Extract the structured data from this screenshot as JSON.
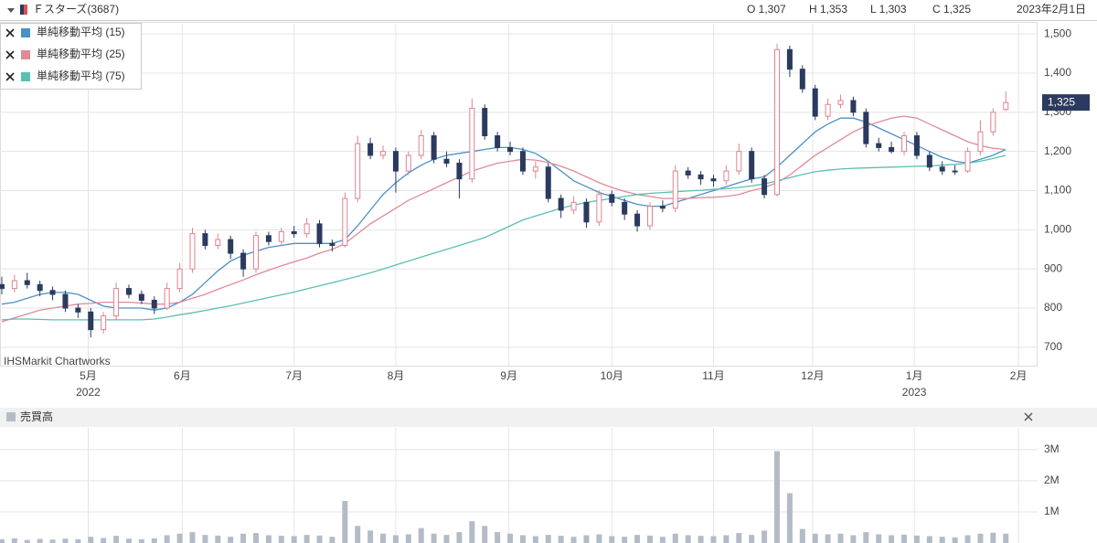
{
  "chart_data": [
    {
      "type": "candlestick",
      "title": "Ｆスターズ(3687)",
      "date": "2023年2月1日",
      "ohlc_labels": [
        "O 1,307",
        "H 1,353",
        "L 1,303",
        "C 1,325"
      ],
      "source": "IHSMarkit Chartworks",
      "last_label": "1,325",
      "up_color": "#e0828f",
      "down_color": "#2b3a5e",
      "grid": true,
      "x": [
        0,
        1,
        2,
        3,
        4,
        5,
        6,
        7,
        8,
        9,
        10,
        11,
        12,
        13,
        14,
        15,
        16,
        17,
        18,
        19,
        20,
        21,
        22,
        23,
        24,
        25,
        26,
        27,
        28,
        29,
        30,
        31,
        32,
        33,
        34,
        35,
        36,
        37,
        38,
        39,
        40,
        41,
        42,
        43,
        44,
        45,
        46,
        47,
        48,
        49,
        50,
        51,
        52,
        53,
        54,
        55,
        56,
        57,
        58,
        59,
        60,
        61,
        62,
        63,
        64,
        65,
        66,
        67,
        68,
        69,
        70,
        71,
        72,
        73,
        74,
        75,
        76,
        77,
        78,
        79
      ],
      "open": [
        860,
        850,
        870,
        860,
        845,
        835,
        800,
        790,
        745,
        780,
        850,
        835,
        820,
        800,
        850,
        900,
        990,
        960,
        975,
        940,
        900,
        985,
        970,
        995,
        990,
        1015,
        965,
        960,
        1080,
        1220,
        1190,
        1200,
        1150,
        1190,
        1240,
        1180,
        1170,
        1130,
        1310,
        1240,
        1210,
        1200,
        1150,
        1160,
        1080,
        1050,
        1070,
        1020,
        1090,
        1070,
        1040,
        1010,
        1060,
        1055,
        1150,
        1140,
        1130,
        1125,
        1150,
        1200,
        1130,
        1090,
        1460,
        1410,
        1360,
        1290,
        1320,
        1330,
        1300,
        1220,
        1210,
        1200,
        1240,
        1190,
        1160,
        1150,
        1150,
        1200,
        1250,
        1307
      ],
      "high": [
        880,
        885,
        890,
        870,
        855,
        845,
        810,
        800,
        790,
        865,
        860,
        845,
        830,
        865,
        915,
        1005,
        1000,
        990,
        985,
        950,
        995,
        995,
        1005,
        1010,
        1030,
        1025,
        975,
        1095,
        1240,
        1235,
        1215,
        1210,
        1200,
        1255,
        1250,
        1200,
        1180,
        1335,
        1320,
        1250,
        1225,
        1210,
        1175,
        1170,
        1090,
        1085,
        1080,
        1100,
        1100,
        1080,
        1050,
        1070,
        1075,
        1165,
        1160,
        1150,
        1140,
        1165,
        1220,
        1210,
        1140,
        1475,
        1470,
        1420,
        1370,
        1335,
        1345,
        1340,
        1310,
        1235,
        1225,
        1250,
        1250,
        1200,
        1175,
        1165,
        1210,
        1280,
        1310,
        1353
      ],
      "low": [
        835,
        840,
        850,
        830,
        820,
        790,
        775,
        725,
        735,
        770,
        825,
        810,
        785,
        795,
        840,
        890,
        950,
        950,
        925,
        880,
        890,
        960,
        960,
        980,
        980,
        955,
        945,
        955,
        1070,
        1180,
        1180,
        1095,
        1140,
        1180,
        1170,
        1160,
        1080,
        1120,
        1230,
        1200,
        1190,
        1140,
        1130,
        1070,
        1030,
        1040,
        1005,
        1010,
        1060,
        1025,
        995,
        1000,
        1045,
        1045,
        1130,
        1115,
        1110,
        1115,
        1140,
        1120,
        1080,
        1085,
        1390,
        1350,
        1280,
        1280,
        1310,
        1290,
        1210,
        1200,
        1195,
        1190,
        1180,
        1150,
        1140,
        1140,
        1145,
        1190,
        1240,
        1303
      ],
      "close": [
        850,
        870,
        860,
        845,
        835,
        800,
        790,
        745,
        780,
        850,
        835,
        820,
        800,
        850,
        900,
        990,
        960,
        975,
        940,
        900,
        985,
        970,
        995,
        990,
        1015,
        965,
        960,
        1080,
        1220,
        1190,
        1200,
        1150,
        1190,
        1240,
        1180,
        1170,
        1130,
        1310,
        1240,
        1210,
        1200,
        1150,
        1160,
        1080,
        1050,
        1070,
        1020,
        1090,
        1070,
        1040,
        1010,
        1060,
        1055,
        1150,
        1140,
        1130,
        1125,
        1150,
        1200,
        1130,
        1090,
        1460,
        1410,
        1360,
        1290,
        1320,
        1330,
        1300,
        1220,
        1210,
        1200,
        1240,
        1190,
        1160,
        1150,
        1150,
        1200,
        1250,
        1300,
        1325
      ],
      "series": [
        {
          "name": "単純移動平均 (15)",
          "color": "#4a90c8",
          "values": [
            810,
            815,
            825,
            835,
            840,
            840,
            835,
            820,
            805,
            800,
            800,
            800,
            795,
            800,
            815,
            835,
            865,
            895,
            920,
            935,
            945,
            955,
            960,
            965,
            965,
            965,
            965,
            975,
            1010,
            1050,
            1090,
            1120,
            1145,
            1165,
            1180,
            1190,
            1195,
            1200,
            1205,
            1210,
            1210,
            1205,
            1195,
            1175,
            1150,
            1125,
            1110,
            1095,
            1085,
            1075,
            1065,
            1060,
            1060,
            1070,
            1080,
            1090,
            1100,
            1110,
            1120,
            1130,
            1135,
            1160,
            1190,
            1220,
            1250,
            1270,
            1285,
            1285,
            1275,
            1260,
            1245,
            1230,
            1215,
            1200,
            1185,
            1175,
            1170,
            1180,
            1190,
            1205
          ]
        },
        {
          "name": "単純移動平均 (25)",
          "color": "#e08a96",
          "values": [
            765,
            775,
            785,
            795,
            800,
            805,
            810,
            812,
            815,
            815,
            815,
            813,
            810,
            810,
            815,
            825,
            835,
            848,
            860,
            872,
            885,
            897,
            908,
            918,
            928,
            940,
            950,
            965,
            990,
            1015,
            1035,
            1055,
            1075,
            1090,
            1105,
            1120,
            1135,
            1150,
            1160,
            1170,
            1175,
            1180,
            1178,
            1172,
            1162,
            1150,
            1135,
            1120,
            1108,
            1098,
            1090,
            1085,
            1080,
            1080,
            1080,
            1082,
            1083,
            1085,
            1090,
            1100,
            1108,
            1120,
            1140,
            1165,
            1190,
            1210,
            1230,
            1250,
            1265,
            1275,
            1285,
            1290,
            1285,
            1270,
            1255,
            1240,
            1225,
            1215,
            1208,
            1205
          ]
        },
        {
          "name": "単純移動平均 (75)",
          "color": "#5bbfb0",
          "values": [
            770,
            772,
            772,
            771,
            770,
            770,
            770,
            770,
            770,
            770,
            770,
            770,
            772,
            777,
            783,
            788,
            794,
            800,
            806,
            813,
            820,
            827,
            834,
            841,
            849,
            857,
            865,
            873,
            881,
            890,
            900,
            910,
            920,
            930,
            940,
            950,
            960,
            970,
            980,
            995,
            1010,
            1025,
            1035,
            1045,
            1055,
            1063,
            1070,
            1075,
            1080,
            1085,
            1090,
            1093,
            1095,
            1097,
            1099,
            1101,
            1103,
            1105,
            1108,
            1112,
            1117,
            1125,
            1133,
            1141,
            1148,
            1152,
            1155,
            1157,
            1158,
            1159,
            1160,
            1161,
            1162,
            1163,
            1165,
            1167,
            1170,
            1175,
            1182,
            1190
          ]
        }
      ],
      "xlim": [
        -0.14,
        81.5
      ],
      "xticks": [
        {
          "value": 6.8,
          "label": "5月"
        },
        {
          "value": 14.2,
          "label": "6月"
        },
        {
          "value": 23,
          "label": "7月"
        },
        {
          "value": 31,
          "label": "8月"
        },
        {
          "value": 39.9,
          "label": "9月"
        },
        {
          "value": 48,
          "label": "10月"
        },
        {
          "value": 56,
          "label": "11月"
        },
        {
          "value": 63.8,
          "label": "12月"
        },
        {
          "value": 71.8,
          "label": "1月"
        },
        {
          "value": 80,
          "label": "2月"
        }
      ],
      "year_labels": [
        {
          "value": 6.8,
          "label": "2022"
        },
        {
          "value": 71.8,
          "label": "2023"
        }
      ],
      "ylim": [
        653,
        1526
      ],
      "yticks": [
        {
          "value": 700,
          "label": "700"
        },
        {
          "value": 800,
          "label": "800"
        },
        {
          "value": 900,
          "label": "900"
        },
        {
          "value": 1000,
          "label": "1,000"
        },
        {
          "value": 1100,
          "label": "1,100"
        },
        {
          "value": 1200,
          "label": "1,200"
        },
        {
          "value": 1300,
          "label": "1,300"
        },
        {
          "value": 1400,
          "label": "1,400"
        },
        {
          "value": 1500,
          "label": "1,500"
        }
      ]
    },
    {
      "type": "bar",
      "title": "売買高",
      "color": "#b3bcc6",
      "grid": true,
      "values": [
        120000,
        150000,
        100000,
        130000,
        110000,
        140000,
        120000,
        200000,
        160000,
        230000,
        140000,
        120000,
        150000,
        250000,
        300000,
        350000,
        260000,
        240000,
        200000,
        300000,
        320000,
        250000,
        230000,
        220000,
        260000,
        240000,
        200000,
        1350000,
        550000,
        400000,
        300000,
        250000,
        280000,
        480000,
        300000,
        260000,
        350000,
        700000,
        550000,
        350000,
        300000,
        250000,
        220000,
        260000,
        230000,
        200000,
        250000,
        280000,
        220000,
        200000,
        260000,
        240000,
        200000,
        300000,
        250000,
        230000,
        220000,
        250000,
        320000,
        260000,
        400000,
        2950000,
        1600000,
        450000,
        300000,
        280000,
        300000,
        250000,
        350000,
        280000,
        250000,
        270000,
        240000,
        220000,
        200000,
        180000,
        250000,
        300000,
        330000,
        300000
      ],
      "ylim": [
        0,
        3700000
      ],
      "yticks": [
        {
          "value": 1000000,
          "label": "1M"
        },
        {
          "value": 2000000,
          "label": "2M"
        },
        {
          "value": 3000000,
          "label": "3M"
        }
      ]
    }
  ]
}
